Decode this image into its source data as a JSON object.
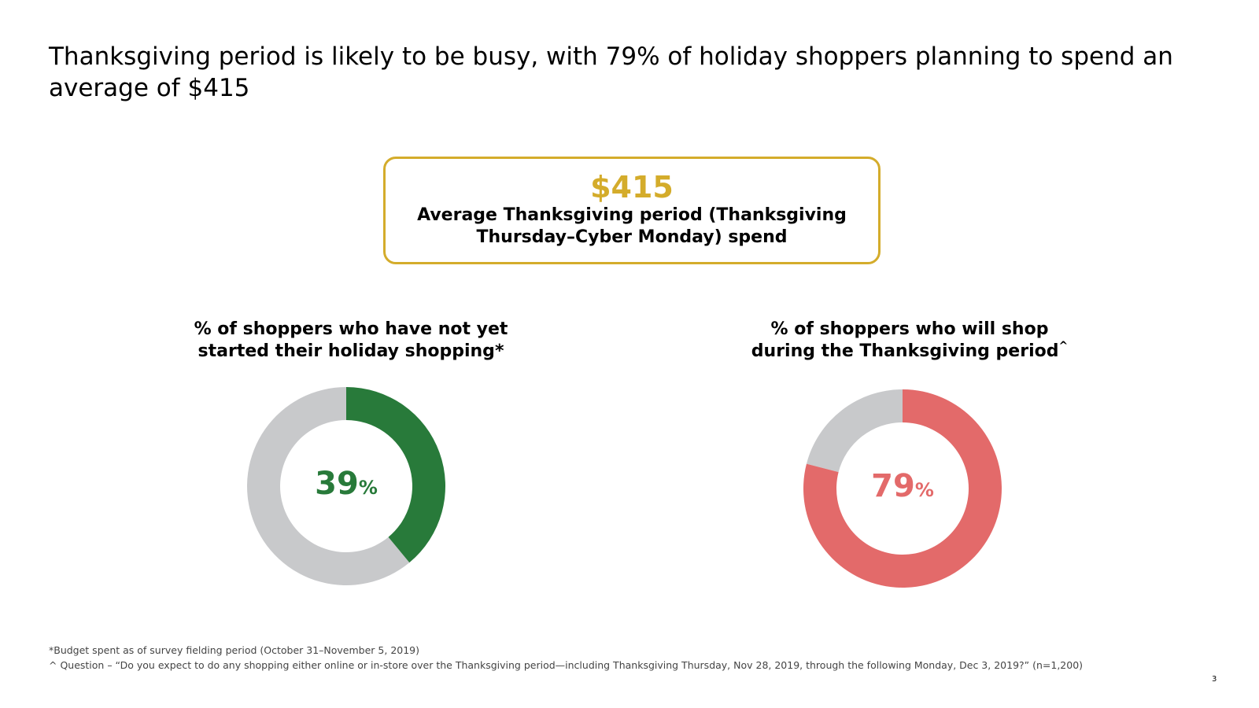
{
  "slide": {
    "title": "Thanksgiving period is likely to be busy, with 79% of holiday shoppers planning to spend an average of $415",
    "page_number": "3"
  },
  "callout": {
    "value": "$415",
    "label_line1": "Average Thanksgiving period (Thanksgiving",
    "label_line2": "Thursday–Cyber Monday) spend",
    "accent_color": "#d4ac2b"
  },
  "chart_data": [
    {
      "type": "pie",
      "donut": true,
      "title_line1": "% of shoppers who have not yet",
      "title_line2": "started their holiday shopping",
      "title_marker": "*",
      "value": 39,
      "center_value": "39",
      "center_unit": "%",
      "highlight_color": "#287a3a",
      "remainder_color": "#c8c9cb"
    },
    {
      "type": "pie",
      "donut": true,
      "title_line1": "% of shoppers who will shop",
      "title_line2": "during the Thanksgiving period",
      "title_marker": "^",
      "value": 79,
      "center_value": "79",
      "center_unit": "%",
      "highlight_color": "#e36a6a",
      "remainder_color": "#c8c9cb"
    }
  ],
  "footnotes": {
    "note1": "*Budget spent as of survey fielding period (October 31–November 5, 2019)",
    "note2": "^ Question – “Do you expect to do any shopping either online or in-store over the Thanksgiving period—including Thanksgiving Thursday, Nov 28, 2019, through the following Monday, Dec 3, 2019?” (n=1,200)"
  }
}
